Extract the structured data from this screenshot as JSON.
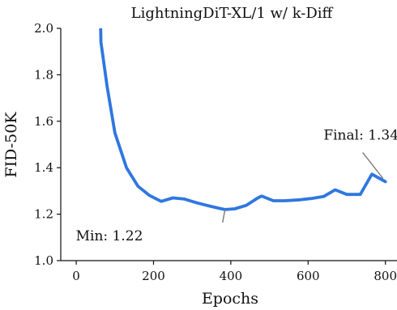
{
  "chart_data": {
    "type": "line",
    "title": "LightningDiT-XL/1 w/ k-Diff",
    "xlabel": "Epochs",
    "ylabel": "FID-50K",
    "xlim": [
      -40,
      830
    ],
    "ylim": [
      1.0,
      2.0
    ],
    "xticks": [
      0,
      200,
      400,
      600,
      800
    ],
    "yticks": [
      1.0,
      1.2,
      1.4,
      1.6,
      1.8,
      2.0
    ],
    "xtick_labels": [
      "0",
      "200",
      "400",
      "600",
      "800"
    ],
    "ytick_labels": [
      "1.0",
      "1.2",
      "1.4",
      "1.6",
      "1.8",
      "2.0"
    ],
    "grid": false,
    "line_color": "#2f77e0",
    "series": [
      {
        "x": [
          60,
          64,
          80,
          100,
          130,
          160,
          190,
          220,
          250,
          280,
          310,
          340,
          370,
          385,
          410,
          440,
          470,
          480,
          510,
          540,
          580,
          610,
          640,
          670,
          700,
          735,
          765,
          800
        ],
        "y": [
          2.25,
          1.94,
          1.75,
          1.55,
          1.4,
          1.32,
          1.28,
          1.255,
          1.27,
          1.265,
          1.25,
          1.237,
          1.225,
          1.22,
          1.223,
          1.238,
          1.27,
          1.278,
          1.258,
          1.258,
          1.262,
          1.268,
          1.276,
          1.305,
          1.285,
          1.285,
          1.372,
          1.34
        ]
      }
    ],
    "annotations": [
      {
        "text": "Min: 1.22",
        "x": 385,
        "y": 1.22
      },
      {
        "text": "Final: 1.34",
        "x": 800,
        "y": 1.34
      }
    ]
  }
}
